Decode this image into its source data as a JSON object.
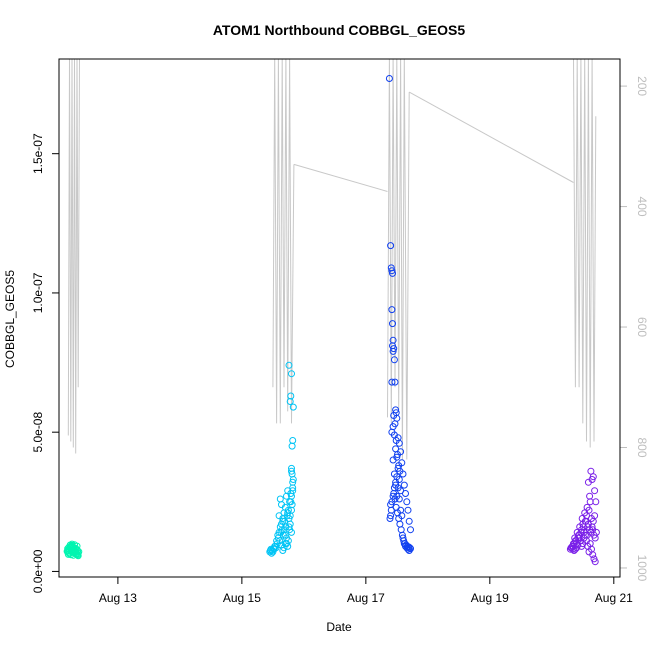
{
  "chart_data": {
    "type": "scatter",
    "title": "ATOM1 Northbound COBBGL_GEOS5",
    "xlabel": "Date",
    "ylabel": "COBBGL_GEOS5",
    "x_unit": "days (August)",
    "xlim": [
      12.05,
      21.1
    ],
    "ylim": [
      -2e-09,
      1.84e-07
    ],
    "x_ticks": [
      13,
      15,
      17,
      19,
      21
    ],
    "x_tick_labels": [
      "Aug 13",
      "Aug 15",
      "Aug 17",
      "Aug 19",
      "Aug 21"
    ],
    "y_ticks": [
      0,
      5e-08,
      1e-07,
      1.5e-07
    ],
    "y_tick_labels": [
      "0.0e+00",
      "5.0e-08",
      "1.0e-07",
      "1.5e-07"
    ],
    "right_axis": {
      "color": "#bebebe",
      "ylim_top_to_bottom": [
        155,
        1015
      ],
      "ticks": [
        200,
        400,
        600,
        800,
        1000
      ],
      "tick_labels": [
        "200",
        "400",
        "600",
        "800",
        "1000"
      ]
    },
    "colors": {
      "flight1": "#00f5b0",
      "flight2": "#00c4f5",
      "flight3": "#1040f0",
      "flight4": "#7a20e8",
      "pressure_line": "#c8c8c8"
    },
    "pressure_trace": {
      "name": "",
      "segments": [
        {
          "x": [
            12.2,
            12.22,
            12.24,
            12.26,
            12.28,
            12.3,
            12.32,
            12.34,
            12.36,
            12.38
          ],
          "y": [
            780,
            150,
            790,
            150,
            800,
            150,
            810,
            150,
            700,
            150
          ]
        },
        {
          "x": [
            15.5,
            15.53,
            15.56,
            15.59,
            15.62,
            15.65,
            15.68,
            15.71,
            15.74,
            15.77,
            15.8,
            15.84
          ],
          "y": [
            700,
            150,
            760,
            150,
            760,
            150,
            700,
            150,
            740,
            150,
            760,
            330
          ]
        },
        {
          "x": [
            15.84,
            17.35
          ],
          "y": [
            330,
            375
          ]
        },
        {
          "x": [
            17.35,
            17.38,
            17.41,
            17.44,
            17.47,
            17.5,
            17.53,
            17.56,
            17.59,
            17.62,
            17.66,
            17.7
          ],
          "y": [
            750,
            150,
            760,
            150,
            700,
            150,
            740,
            150,
            820,
            150,
            820,
            210
          ]
        },
        {
          "x": [
            17.7,
            20.35
          ],
          "y": [
            210,
            360
          ]
        },
        {
          "x": [
            20.35,
            20.38,
            20.41,
            20.44,
            20.47,
            20.5,
            20.53,
            20.56,
            20.59,
            20.62,
            20.65,
            20.68,
            20.71
          ],
          "y": [
            150,
            700,
            150,
            700,
            150,
            760,
            150,
            790,
            150,
            800,
            150,
            790,
            250
          ]
        }
      ]
    },
    "series": [
      {
        "name": "",
        "color": "#00f5b0",
        "x": [
          12.18,
          12.19,
          12.2,
          12.21,
          12.22,
          12.23,
          12.24,
          12.25,
          12.26,
          12.27,
          12.28,
          12.29,
          12.3,
          12.31,
          12.32,
          12.33,
          12.34,
          12.35,
          12.36,
          12.37,
          12.2,
          12.22,
          12.24,
          12.26,
          12.28,
          12.3,
          12.32,
          12.34,
          12.19,
          12.21,
          12.23,
          12.25,
          12.27,
          12.29,
          12.31,
          12.33,
          12.35,
          12.24,
          12.28,
          12.32,
          12.36,
          12.26,
          12.3
        ],
        "y": [
          7.2e-09,
          7.5e-09,
          6.8e-09,
          8e-09,
          7.7e-09,
          8.4e-09,
          8.8e-09,
          9e-09,
          9.3e-09,
          8.9e-09,
          8.6e-09,
          8.1e-09,
          7.9e-09,
          7.4e-09,
          7e-09,
          6.6e-09,
          6.2e-09,
          5.9e-09,
          6.5e-09,
          7.1e-09,
          6.1e-09,
          6.4e-09,
          7.3e-09,
          7.8e-09,
          7.6e-09,
          6.9e-09,
          8.3e-09,
          9.1e-09,
          8.2e-09,
          8.7e-09,
          9.5e-09,
          8.5e-09,
          7.2e-09,
          6.7e-09,
          7.3e-09,
          8e-09,
          7.5e-09,
          6e-09,
          5.8e-09,
          6.3e-09,
          5.6e-09,
          9.8e-09,
          9.6e-09
        ]
      },
      {
        "name": "",
        "color": "#00c4f5",
        "x": [
          15.45,
          15.47,
          15.49,
          15.51,
          15.53,
          15.55,
          15.57,
          15.59,
          15.61,
          15.63,
          15.65,
          15.67,
          15.69,
          15.71,
          15.73,
          15.75,
          15.77,
          15.79,
          15.81,
          15.82,
          15.83,
          15.8,
          15.8,
          15.81,
          15.82,
          15.83,
          15.78,
          15.79,
          15.8,
          15.76,
          15.74,
          15.72,
          15.7,
          15.68,
          15.66,
          15.64,
          15.62,
          15.6,
          15.58,
          15.56,
          15.54,
          15.52,
          15.5,
          15.48,
          15.46,
          15.6,
          15.62,
          15.64,
          15.66,
          15.68,
          15.7,
          15.72,
          15.74,
          15.76,
          15.78,
          15.8,
          15.82,
          15.8,
          15.78,
          15.76,
          15.74,
          15.72,
          15.7,
          15.68,
          15.66,
          15.64,
          15.8,
          15.82,
          15.81,
          15.79,
          15.77,
          15.75
        ],
        "y": [
          7e-09,
          8e-09,
          7.5e-09,
          8.2e-09,
          9e-09,
          8.5e-09,
          1e-08,
          1.2e-08,
          1.1e-08,
          1.4e-08,
          1.5e-08,
          1.3e-08,
          1.8e-08,
          1.6e-08,
          2e-08,
          2.2e-08,
          2.5e-08,
          2.8e-08,
          2.4e-08,
          3e-08,
          3.3e-08,
          3.6e-08,
          3.7e-08,
          4.5e-08,
          4.7e-08,
          5.9e-08,
          6.1e-08,
          6.3e-08,
          7.1e-08,
          7.4e-08,
          2.9e-08,
          2.7e-08,
          2.3e-08,
          2.1e-08,
          1.9e-08,
          1.7e-08,
          1.6e-08,
          1.4e-08,
          1.3e-08,
          1.1e-08,
          9e-09,
          8e-09,
          7e-09,
          6.5e-09,
          7.5e-09,
          2e-08,
          2.6e-08,
          2.4e-08,
          1.8e-08,
          1.5e-08,
          1.3e-08,
          1e-08,
          9e-09,
          1.6e-08,
          2e-08,
          2.7e-08,
          3.2e-08,
          1.4e-08,
          1.7e-08,
          1.9e-08,
          2.1e-08,
          1.2e-08,
          1e-08,
          8.5e-09,
          7.5e-09,
          9.5e-09,
          2.2e-08,
          2.9e-08,
          3.5e-08,
          2.5e-08,
          1.5e-08,
          1.1e-08
        ]
      },
      {
        "name": "",
        "color": "#1040f0",
        "x": [
          17.38,
          17.4,
          17.41,
          17.42,
          17.43,
          17.42,
          17.43,
          17.44,
          17.45,
          17.44,
          17.46,
          17.47,
          17.48,
          17.49,
          17.5,
          17.52,
          17.54,
          17.56,
          17.58,
          17.6,
          17.62,
          17.64,
          17.66,
          17.68,
          17.7,
          17.72,
          17.4,
          17.41,
          17.42,
          17.44,
          17.46,
          17.48,
          17.5,
          17.52,
          17.54,
          17.56,
          17.58,
          17.42,
          17.44,
          17.46,
          17.48,
          17.5,
          17.52,
          17.54,
          17.56,
          17.6,
          17.62,
          17.64,
          17.66,
          17.68,
          17.7,
          17.72,
          17.39,
          17.4,
          17.45,
          17.47,
          17.49,
          17.51,
          17.53,
          17.55,
          17.57,
          17.59,
          17.61,
          17.63,
          17.65,
          17.67,
          17.69,
          17.71,
          17.45,
          17.47,
          17.49,
          17.51,
          17.53,
          17.55,
          17.42,
          17.43,
          17.48,
          17.5,
          17.46,
          17.44
        ],
        "y": [
          1.77e-07,
          1.17e-07,
          1.09e-07,
          1.08e-07,
          1.07e-07,
          9.4e-08,
          8.9e-08,
          8.3e-08,
          8e-08,
          7.9e-08,
          7.6e-08,
          6.8e-08,
          5.8e-08,
          5.7e-08,
          5.5e-08,
          4.8e-08,
          4.6e-08,
          4.3e-08,
          3.9e-08,
          3.5e-08,
          3.1e-08,
          2.8e-08,
          2.5e-08,
          2.2e-08,
          1.8e-08,
          1.5e-08,
          2e-08,
          2.2e-08,
          2.5e-08,
          2.7e-08,
          3e-08,
          3.2e-08,
          3.4e-08,
          3e-08,
          2.6e-08,
          2.2e-08,
          2e-08,
          5e-08,
          5.2e-08,
          4.9e-08,
          4.4e-08,
          4.1e-08,
          3.7e-08,
          3.3e-08,
          2.9e-08,
          1.2e-08,
          1e-08,
          9e-09,
          8.5e-09,
          8e-09,
          7.5e-09,
          8.2e-09,
          1.9e-08,
          2.4e-08,
          2.8e-08,
          2.6e-08,
          2.3e-08,
          2.1e-08,
          1.9e-08,
          1.7e-08,
          1.5e-08,
          1.3e-08,
          1.1e-08,
          1e-08,
          9.5e-09,
          9e-09,
          8.8e-09,
          8.5e-09,
          5.6e-08,
          5.3e-08,
          4.7e-08,
          4.2e-08,
          3.8e-08,
          3.6e-08,
          6.8e-08,
          8.1e-08,
          3.1e-08,
          2.7e-08,
          3.5e-08,
          4e-08
        ]
      },
      {
        "name": "",
        "color": "#7a20e8",
        "x": [
          20.3,
          20.32,
          20.34,
          20.36,
          20.38,
          20.4,
          20.42,
          20.44,
          20.46,
          20.48,
          20.5,
          20.52,
          20.54,
          20.56,
          20.58,
          20.6,
          20.62,
          20.64,
          20.66,
          20.68,
          20.7,
          20.72,
          20.33,
          20.37,
          20.41,
          20.45,
          20.49,
          20.53,
          20.57,
          20.61,
          20.65,
          20.69,
          20.71,
          20.35,
          20.39,
          20.43,
          20.47,
          20.51,
          20.55,
          20.59,
          20.63,
          20.67,
          20.62,
          20.64,
          20.66,
          20.68,
          20.7,
          20.6,
          20.58,
          20.56,
          20.54,
          20.52,
          20.5,
          20.48,
          20.46,
          20.44,
          20.42,
          20.4,
          20.38,
          20.36,
          20.34,
          20.31,
          20.65,
          20.67,
          20.69,
          20.63,
          20.61,
          20.59,
          20.57
        ],
        "y": [
          8e-09,
          8.5e-09,
          9e-09,
          1e-08,
          1.1e-08,
          1e-08,
          1.2e-08,
          1.3e-08,
          1.1e-08,
          1.5e-08,
          1.7e-08,
          1.4e-08,
          1.8e-08,
          2e-08,
          1.6e-08,
          2.2e-08,
          2.5e-08,
          1.9e-08,
          1.5e-08,
          1.3e-08,
          1.2e-08,
          1.4e-08,
          9e-09,
          1.2e-08,
          1.4e-08,
          1.6e-08,
          1.9e-08,
          2.1e-08,
          2.3e-08,
          2.7e-08,
          3.3e-08,
          2.9e-08,
          2.5e-08,
          1e-08,
          1.1e-08,
          1.3e-08,
          1.4e-08,
          1.6e-08,
          1.8e-08,
          3.2e-08,
          3.6e-08,
          3.4e-08,
          1e-08,
          8e-09,
          6e-09,
          4.5e-09,
          3.5e-09,
          7e-09,
          9e-09,
          1.1e-08,
          1.3e-08,
          1.2e-08,
          1e-08,
          9e-09,
          1.1e-08,
          1.2e-08,
          9.5e-09,
          8.5e-09,
          8e-09,
          7.5e-09,
          8e-09,
          8.5e-09,
          1.6e-08,
          1.8e-08,
          2e-08,
          1.4e-08,
          1.5e-08,
          1.7e-08,
          1.3e-08
        ]
      }
    ]
  }
}
